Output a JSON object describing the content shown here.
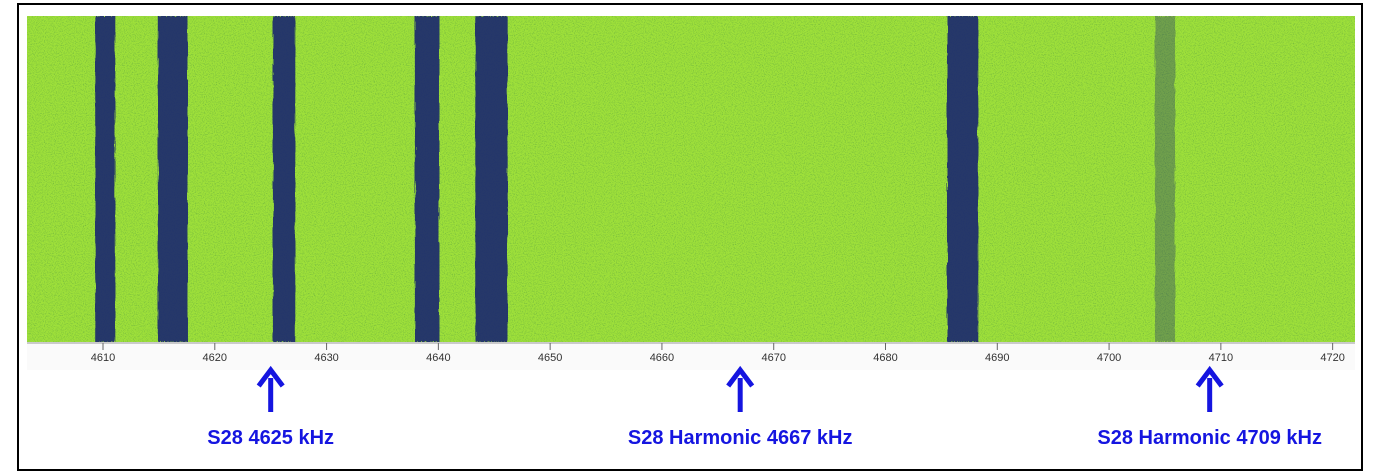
{
  "chart_data": {
    "type": "spectrogram",
    "xlim": [
      4603.2,
      4722
    ],
    "xticks": [
      4610,
      4620,
      4630,
      4640,
      4650,
      4660,
      4670,
      4680,
      4690,
      4700,
      4710,
      4720
    ],
    "background_color": "#9ee03a",
    "signal_color": "#1a2a6e",
    "signals": [
      {
        "start": 4609.3,
        "end": 4611.1
      },
      {
        "start": 4614.9,
        "end": 4617.6
      },
      {
        "start": 4625.2,
        "end": 4627.2
      },
      {
        "start": 4637.9,
        "end": 4640.1
      },
      {
        "start": 4643.3,
        "end": 4646.2
      },
      {
        "start": 4685.5,
        "end": 4688.3
      },
      {
        "start": 4704.1,
        "end": 4705.9
      }
    ],
    "annotation_color": "#1515e0",
    "annotations": [
      {
        "x": 4625,
        "text": "S28 4625 kHz"
      },
      {
        "x": 4667,
        "text": "S28 Harmonic 4667 kHz"
      },
      {
        "x": 4709,
        "text": "S28 Harmonic 4709 kHz"
      }
    ]
  }
}
